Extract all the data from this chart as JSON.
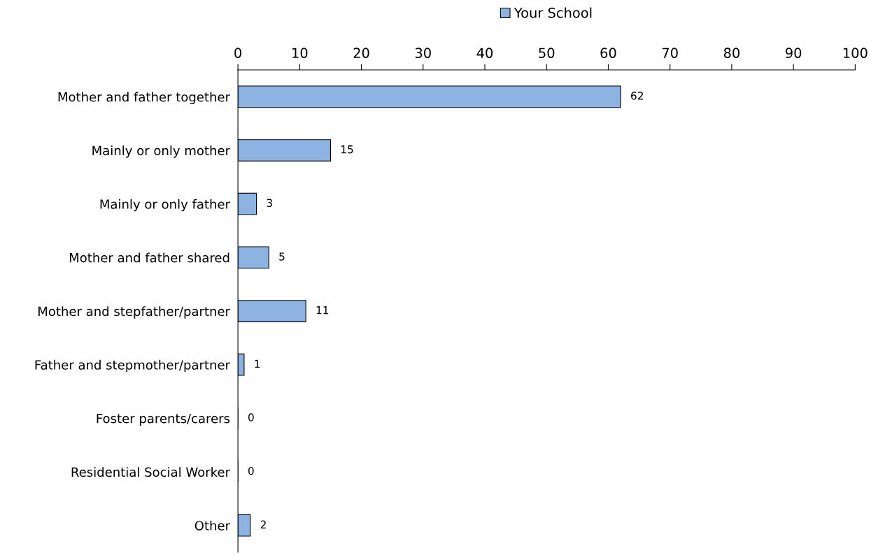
{
  "chart_data": {
    "type": "bar",
    "orientation": "horizontal",
    "categories": [
      "Mother and father together",
      "Mainly or only mother",
      "Mainly or only father",
      "Mother and father shared",
      "Mother and stepfather/partner",
      "Father and stepmother/partner",
      "Foster parents/carers",
      "Residential Social Worker",
      "Other"
    ],
    "series": [
      {
        "name": "Your School",
        "color": "#8db3e2",
        "values": [
          62,
          15,
          3,
          5,
          11,
          1,
          0,
          0,
          2
        ]
      }
    ],
    "xlim": [
      0,
      100
    ],
    "xticks": [
      0,
      10,
      20,
      30,
      40,
      50,
      60,
      70,
      80,
      90,
      100
    ],
    "data_labels": true,
    "legend": "top",
    "grid": false
  }
}
